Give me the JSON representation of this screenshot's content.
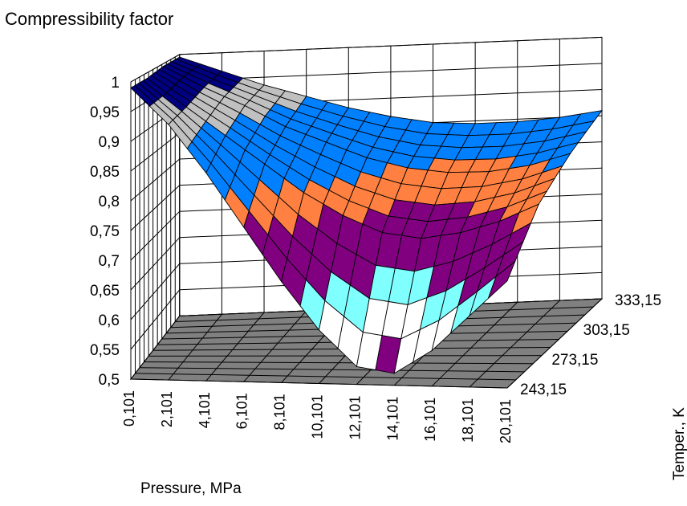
{
  "chart_data": {
    "type": "surface-3d",
    "title": "Compressibility factor",
    "xlabel": "Pressure, MPa",
    "ylabel": "Temper., K",
    "x_ticks": [
      "0,101",
      "2,101",
      "4,101",
      "6,101",
      "8,101",
      "10,101",
      "12,101",
      "14,101",
      "16,101",
      "18,101",
      "20,101"
    ],
    "y_ticks": [
      "243,15",
      "273,15",
      "303,15",
      "333,15"
    ],
    "z_ticks": [
      "0,5",
      "0,55",
      "0,6",
      "0,65",
      "0,7",
      "0,75",
      "0,8",
      "0,85",
      "0,9",
      "0,95",
      "1"
    ],
    "zlim": [
      0.5,
      1.0
    ],
    "pressure_MPa": [
      0.101,
      2.101,
      4.101,
      6.101,
      8.101,
      10.101,
      12.101,
      14.101,
      16.101,
      18.101,
      20.101
    ],
    "temperature_K": [
      243.15,
      273.15,
      303.15,
      333.15
    ],
    "z_values": [
      [
        0.99,
        0.93,
        0.85,
        0.76,
        0.67,
        0.59,
        0.53,
        0.52,
        0.56,
        0.62,
        0.68
      ],
      [
        0.99,
        0.94,
        0.89,
        0.84,
        0.79,
        0.75,
        0.72,
        0.71,
        0.72,
        0.74,
        0.77
      ],
      [
        0.995,
        0.955,
        0.92,
        0.88,
        0.85,
        0.82,
        0.8,
        0.79,
        0.79,
        0.8,
        0.82
      ],
      [
        0.995,
        0.965,
        0.935,
        0.91,
        0.885,
        0.865,
        0.85,
        0.845,
        0.845,
        0.85,
        0.86
      ]
    ],
    "color_bands": [
      {
        "range": [
          0.5,
          0.55
        ],
        "color": "#800080"
      },
      {
        "range": [
          0.55,
          0.6
        ],
        "color": "#ffffff"
      },
      {
        "range": [
          0.6,
          0.65
        ],
        "color": "#80ffff"
      },
      {
        "range": [
          0.65,
          0.7
        ],
        "color": "#800080"
      },
      {
        "range": [
          0.7,
          0.75
        ],
        "color": "#800080"
      },
      {
        "range": [
          0.75,
          0.8
        ],
        "color": "#ff8040"
      },
      {
        "range": [
          0.8,
          0.85
        ],
        "color": "#0080ff"
      },
      {
        "range": [
          0.85,
          0.9
        ],
        "color": "#0080ff"
      },
      {
        "range": [
          0.9,
          0.95
        ],
        "color": "#c0c0c0"
      },
      {
        "range": [
          0.95,
          1.0
        ],
        "color": "#000080"
      },
      {
        "range": [
          1.0,
          1.05
        ],
        "color": "#ff00ff"
      }
    ],
    "floor_color": "#808080",
    "wall_color": "#ffffff",
    "grid": true,
    "legend": "none"
  }
}
